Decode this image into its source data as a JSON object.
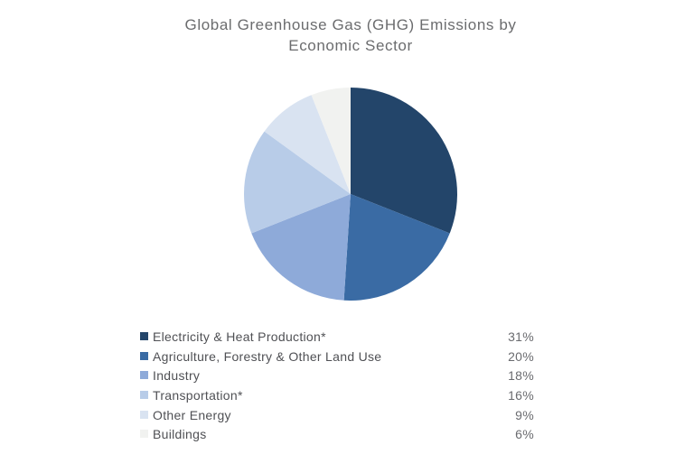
{
  "title": {
    "line1": "Global Greenhouse Gas (GHG) Emissions by",
    "line2": "Economic Sector"
  },
  "chart_data": {
    "type": "pie",
    "title": "Global Greenhouse Gas (GHG) Emissions by Economic Sector",
    "start_angle_deg": 0,
    "direction": "clockwise",
    "legend_position": "bottom-left",
    "value_unit": "percent",
    "total": 100,
    "slices": [
      {
        "label": "Electricity & Heat Production*",
        "value": 31,
        "percent_label": "31%",
        "color": "#23456a"
      },
      {
        "label": "Agriculture, Forestry & Other Land Use",
        "value": 20,
        "percent_label": "20%",
        "color": "#3a6ba4"
      },
      {
        "label": "Industry",
        "value": 18,
        "percent_label": "18%",
        "color": "#8eaad9"
      },
      {
        "label": "Transportation*",
        "value": 16,
        "percent_label": "16%",
        "color": "#b8cce8"
      },
      {
        "label": "Other Energy",
        "value": 9,
        "percent_label": "9%",
        "color": "#d9e3f1"
      },
      {
        "label": "Buildings",
        "value": 6,
        "percent_label": "6%",
        "color": "#f1f2f0"
      }
    ]
  }
}
